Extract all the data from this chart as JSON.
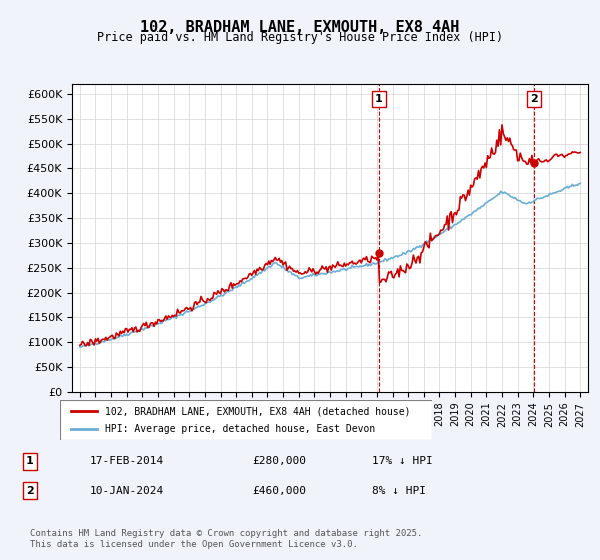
{
  "title": "102, BRADHAM LANE, EXMOUTH, EX8 4AH",
  "subtitle": "Price paid vs. HM Land Registry's House Price Index (HPI)",
  "legend_line1": "102, BRADHAM LANE, EXMOUTH, EX8 4AH (detached house)",
  "legend_line2": "HPI: Average price, detached house, East Devon",
  "annotation1_label": "1",
  "annotation1_date": "17-FEB-2014",
  "annotation1_price": 280000,
  "annotation1_text": "17% ↓ HPI",
  "annotation2_label": "2",
  "annotation2_date": "10-JAN-2024",
  "annotation2_price": 460000,
  "annotation2_text": "8% ↓ HPI",
  "xlabel": "",
  "ylabel": "",
  "ylim": [
    0,
    620000
  ],
  "yticks": [
    0,
    50000,
    100000,
    150000,
    200000,
    250000,
    300000,
    350000,
    400000,
    450000,
    500000,
    550000,
    600000
  ],
  "hpi_color": "#6baed6",
  "price_color": "#cc0000",
  "vline_color": "#cc0000",
  "background_color": "#f0f4fa",
  "plot_bg_color": "#ffffff",
  "footer": "Contains HM Land Registry data © Crown copyright and database right 2025.\nThis data is licensed under the Open Government Licence v3.0.",
  "x_start_year": 1995,
  "x_end_year": 2027
}
